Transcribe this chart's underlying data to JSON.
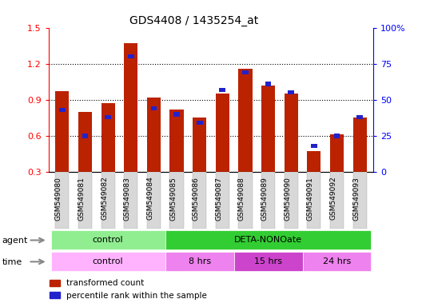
{
  "title": "GDS4408 / 1435254_at",
  "categories": [
    "GSM549080",
    "GSM549081",
    "GSM549082",
    "GSM549083",
    "GSM549084",
    "GSM549085",
    "GSM549086",
    "GSM549087",
    "GSM549088",
    "GSM549089",
    "GSM549090",
    "GSM549091",
    "GSM549092",
    "GSM549093"
  ],
  "red_values": [
    0.97,
    0.8,
    0.87,
    1.37,
    0.92,
    0.82,
    0.75,
    0.95,
    1.16,
    1.02,
    0.95,
    0.47,
    0.61,
    0.75
  ],
  "blue_percentile": [
    43,
    25,
    38,
    80,
    44,
    40,
    34,
    57,
    69,
    61,
    55,
    18,
    25,
    38
  ],
  "ylim_left": [
    0.3,
    1.5
  ],
  "ylim_right": [
    0,
    100
  ],
  "yticks_left": [
    0.3,
    0.6,
    0.9,
    1.2,
    1.5
  ],
  "yticks_right": [
    0,
    25,
    50,
    75,
    100
  ],
  "ytick_labels_right": [
    "0",
    "25",
    "50",
    "75",
    "100%"
  ],
  "agent_groups": [
    {
      "label": "control",
      "start": 0,
      "end": 5,
      "color": "#90ee90"
    },
    {
      "label": "DETA-NONOate",
      "start": 5,
      "end": 14,
      "color": "#32cd32"
    }
  ],
  "time_groups": [
    {
      "label": "control",
      "start": 0,
      "end": 5,
      "color": "#ffb3ff"
    },
    {
      "label": "8 hrs",
      "start": 5,
      "end": 8,
      "color": "#ee82ee"
    },
    {
      "label": "15 hrs",
      "start": 8,
      "end": 11,
      "color": "#cc44cc"
    },
    {
      "label": "24 hrs",
      "start": 11,
      "end": 14,
      "color": "#ee82ee"
    }
  ],
  "red_color": "#bb2200",
  "blue_color": "#2222cc",
  "bar_bg": "#d8d8d8",
  "legend_red": "transformed count",
  "legend_blue": "percentile rank within the sample"
}
